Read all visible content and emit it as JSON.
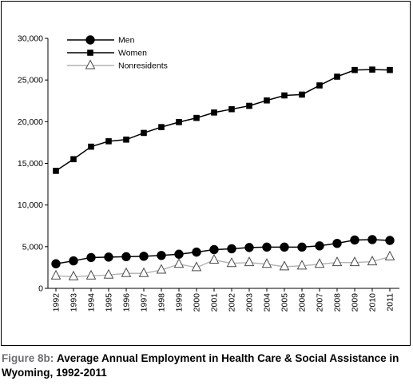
{
  "caption": {
    "label": "Figure 8b:",
    "text": "Average Annual Employment in Health Care & Social Assistance in Wyoming, 1992-2011"
  },
  "colors": {
    "men": "#000000",
    "women": "#000000",
    "nonresidents": "#9d9d9d",
    "caption_label": "#6d6e71"
  },
  "chart_data": {
    "type": "line",
    "title": "",
    "xlabel": "",
    "ylabel": "",
    "x": [
      "1992",
      "1993",
      "1994",
      "1995",
      "1996",
      "1997",
      "1998",
      "1999",
      "2000",
      "2001",
      "2002",
      "2003",
      "2004",
      "2005",
      "2006",
      "2007",
      "2008",
      "2009",
      "2010",
      "2011"
    ],
    "ylim": [
      0,
      30000
    ],
    "yticks": [
      0,
      5000,
      10000,
      15000,
      20000,
      25000,
      30000
    ],
    "ytick_labels": [
      "0",
      "5,000",
      "10,000",
      "15,000",
      "20,000",
      "25,000",
      "30,000"
    ],
    "grid": false,
    "legend_position": "top-left",
    "series": [
      {
        "name": "Men",
        "marker": "circle",
        "color": "#000000",
        "values": [
          2950,
          3300,
          3700,
          3750,
          3800,
          3850,
          3950,
          4100,
          4350,
          4650,
          4750,
          4900,
          4950,
          4950,
          4950,
          5100,
          5400,
          5800,
          5850,
          5750
        ]
      },
      {
        "name": "Women",
        "marker": "square",
        "color": "#000000",
        "values": [
          14100,
          15500,
          17000,
          17650,
          17850,
          18650,
          19350,
          19950,
          20450,
          21100,
          21500,
          21900,
          22550,
          23150,
          23250,
          24350,
          25400,
          26200,
          26250,
          26200
        ]
      },
      {
        "name": "Nonresidents",
        "marker": "triangle",
        "color": "#9d9d9d",
        "values": [
          1500,
          1400,
          1500,
          1600,
          1800,
          1800,
          2200,
          2900,
          2500,
          3400,
          3000,
          3100,
          2900,
          2600,
          2700,
          2900,
          3100,
          3100,
          3200,
          3800
        ]
      }
    ]
  }
}
